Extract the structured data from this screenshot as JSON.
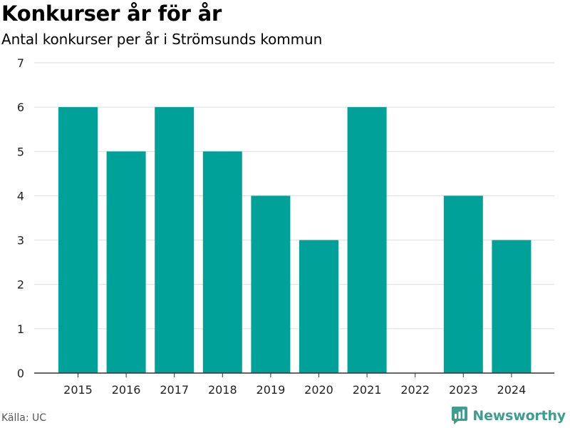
{
  "header": {
    "title": "Konkurser år för år",
    "subtitle": "Antal konkurser per år i Strömsunds kommun"
  },
  "footer": {
    "source": "Källa: UC",
    "brand": "Newsworthy",
    "brand_icon": "newsworthy-logo-icon"
  },
  "colors": {
    "bar": "#00a199",
    "grid": "#dddddd",
    "axis": "#333333",
    "text": "#222222",
    "brand": "#3f9d8f"
  },
  "chart_data": {
    "type": "bar",
    "categories": [
      "2015",
      "2016",
      "2017",
      "2018",
      "2019",
      "2020",
      "2021",
      "2022",
      "2023",
      "2024"
    ],
    "values": [
      6,
      5,
      6,
      5,
      4,
      3,
      6,
      0,
      4,
      3
    ],
    "title": "Konkurser år för år",
    "subtitle": "Antal konkurser per år i Strömsunds kommun",
    "xlabel": "",
    "ylabel": "",
    "ylim": [
      0,
      7
    ],
    "yticks": [
      0,
      1,
      2,
      3,
      4,
      5,
      6,
      7
    ],
    "grid": true,
    "legend": "none"
  }
}
